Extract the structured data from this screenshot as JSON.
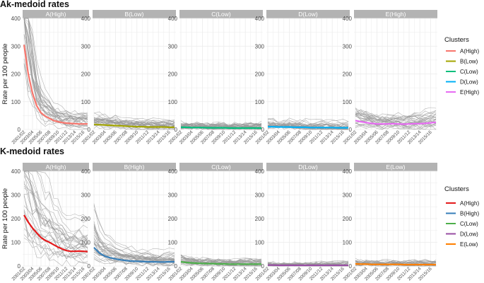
{
  "chart_data": [
    {
      "type": "line",
      "title": "Ak-medoid rates",
      "ylabel": "Rate per 100 people",
      "ylim": [
        0,
        400
      ],
      "y_ticks": [
        "0",
        "100",
        "200",
        "300",
        "400"
      ],
      "x_ticks": [
        "2001/02",
        "2003/04",
        "2005/06",
        "2007/08",
        "2009/10",
        "2011/12",
        "2013/14",
        "2015/16"
      ],
      "legend_title": "Clusters",
      "legend_position": "right",
      "grid": true,
      "background_lines": "grey",
      "panels": [
        {
          "strip": "A(High)",
          "legend": "A(High)",
          "color": "#F8766D",
          "values": [
            305,
            200,
            130,
            85,
            60,
            48,
            40,
            32,
            28,
            25,
            23,
            22,
            21,
            20,
            20,
            20
          ]
        },
        {
          "strip": "B(Low)",
          "legend": "B(Low)",
          "color": "#A3A500",
          "values": [
            18,
            17,
            16,
            15,
            14,
            13,
            12,
            11,
            10,
            10,
            9,
            9,
            9,
            9,
            8,
            8
          ]
        },
        {
          "strip": "C(Low)",
          "legend": "C(Low)",
          "color": "#00BF7D",
          "values": [
            8,
            8,
            7,
            7,
            7,
            6,
            6,
            6,
            6,
            5,
            5,
            5,
            5,
            5,
            5,
            5
          ]
        },
        {
          "strip": "D(Low)",
          "legend": "D(Low)",
          "color": "#00B0F6",
          "values": [
            10,
            10,
            9,
            9,
            9,
            8,
            8,
            8,
            7,
            7,
            7,
            7,
            7,
            6,
            6,
            6
          ]
        },
        {
          "strip": "E(High)",
          "legend": "E(High)",
          "color": "#E76BF3",
          "values": [
            32,
            28,
            25,
            22,
            20,
            20,
            20,
            21,
            20,
            19,
            20,
            21,
            21,
            22,
            24,
            26
          ]
        }
      ]
    },
    {
      "type": "line",
      "title": "K-medoid rates",
      "ylabel": "Rate per 100 people",
      "ylim": [
        0,
        400
      ],
      "y_ticks": [
        "0",
        "100",
        "200",
        "300",
        "400"
      ],
      "x_ticks": [
        "2001/02",
        "2003/04",
        "2005/06",
        "2007/08",
        "2009/10",
        "2011/12",
        "2013/14",
        "2015/16"
      ],
      "legend_title": "Clusters",
      "legend_position": "right",
      "grid": true,
      "background_lines": "grey",
      "panels": [
        {
          "strip": "A(High)",
          "legend": "A(High)",
          "color": "#E41A1C",
          "values": [
            215,
            185,
            160,
            140,
            120,
            108,
            100,
            90,
            80,
            72,
            65,
            62,
            62,
            63,
            62,
            61
          ]
        },
        {
          "strip": "B(High)",
          "legend": "B(High)",
          "color": "#377EB8",
          "values": [
            78,
            55,
            42,
            35,
            30,
            26,
            23,
            21,
            20,
            19,
            18,
            18,
            17,
            17,
            18,
            18
          ]
        },
        {
          "strip": "C(Low)",
          "legend": "C(Low)",
          "color": "#4DAF4A",
          "values": [
            18,
            15,
            13,
            12,
            11,
            10,
            10,
            9,
            9,
            8,
            8,
            8,
            8,
            8,
            8,
            8
          ]
        },
        {
          "strip": "D(Low)",
          "legend": "D(Low)",
          "color": "#984EA3",
          "values": [
            4,
            4,
            3,
            3,
            3,
            3,
            3,
            3,
            3,
            3,
            3,
            3,
            3,
            3,
            3,
            3
          ]
        },
        {
          "strip": "E(Low)",
          "legend": "E(Low)",
          "color": "#FF7F00",
          "values": [
            9,
            8,
            8,
            7,
            7,
            7,
            7,
            7,
            7,
            6,
            6,
            6,
            6,
            6,
            6,
            6
          ]
        }
      ]
    }
  ]
}
